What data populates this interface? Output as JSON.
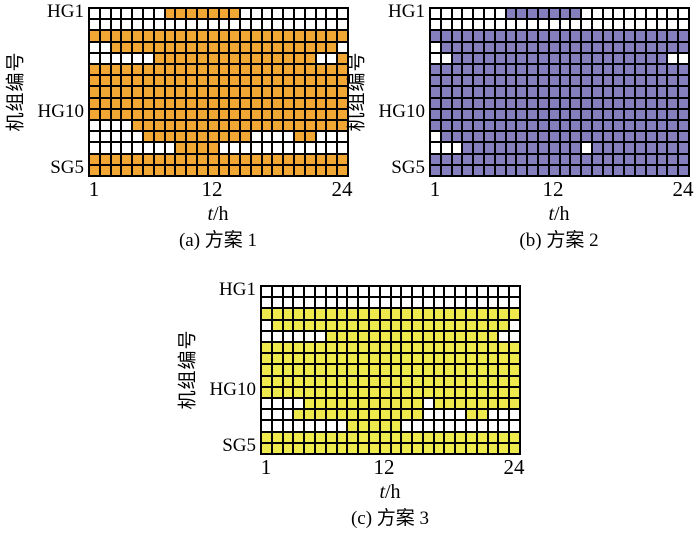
{
  "figure_background": "#FFFFFF",
  "grid_rows": 15,
  "grid_cols": 24,
  "chart_data": [
    {
      "id": "a",
      "type": "heatmap",
      "caption": "(a) 方案 1",
      "on_color": "#F1A733",
      "off_color": "#FFFFFF",
      "grid_line_color": "#000000",
      "x": {
        "var": "t",
        "unit": "/h",
        "ticks": [
          "1",
          "12",
          "24"
        ],
        "range": [
          1,
          24
        ]
      },
      "y": {
        "title": "机组编号",
        "ticks": [
          "HG1",
          "HG10",
          "SG5"
        ],
        "tick_rows": [
          1,
          10,
          15
        ]
      },
      "rows": 15,
      "cols": 24,
      "matrix": [
        "000000011111110000000000",
        "000000000000000000000000",
        "111111111111111111111111",
        "001111111111111111111110",
        "000000111111111111111001",
        "111111111111111111111111",
        "111111111111111111111111",
        "111111111111111111111111",
        "111111111111111111111111",
        "111111111111111111111111",
        "000011111111111111111111",
        "000001111111111000011000",
        "000000001111000000000000",
        "111111111111111111111111",
        "111111111111111111111111"
      ]
    },
    {
      "id": "b",
      "type": "heatmap",
      "caption": "(b) 方案 2",
      "on_color": "#857FBE",
      "off_color": "#FFFFFF",
      "grid_line_color": "#000000",
      "x": {
        "var": "t",
        "unit": "/h",
        "ticks": [
          "1",
          "12",
          "24"
        ],
        "range": [
          1,
          24
        ]
      },
      "y": {
        "title": "机组编号",
        "ticks": [
          "HG1",
          "HG10",
          "SG5"
        ],
        "tick_rows": [
          1,
          10,
          15
        ]
      },
      "rows": 15,
      "cols": 24,
      "matrix": [
        "000000011111110000000000",
        "000000000000000000000000",
        "111111111111111111111111",
        "011111111111111111111111",
        "001111111111111111111100",
        "111111111111111111111111",
        "111111111111111111111111",
        "111111111111111111111111",
        "111111111111111111111111",
        "111111111111111111111111",
        "111111111111111111111111",
        "011111111111111111111111",
        "000111111111110111111111",
        "111111111111111111111111",
        "111111111111111111111111"
      ]
    },
    {
      "id": "c",
      "type": "heatmap",
      "caption": "(c) 方案 3",
      "on_color": "#EEEA4D",
      "off_color": "#FFFFFF",
      "grid_line_color": "#000000",
      "x": {
        "var": "t",
        "unit": "/h",
        "ticks": [
          "1",
          "12",
          "24"
        ],
        "range": [
          1,
          24
        ]
      },
      "y": {
        "title": "机组编号",
        "ticks": [
          "HG1",
          "HG10",
          "SG5"
        ],
        "tick_rows": [
          1,
          10,
          15
        ]
      },
      "rows": 15,
      "cols": 24,
      "matrix": [
        "000000000000000000000000",
        "000000000000000000000000",
        "111111111111111111111111",
        "011111111111111111111110",
        "000000111111111111111100",
        "111111111111111111111111",
        "111111111111111111111111",
        "111111111111111111111111",
        "111111111111111111111111",
        "111111111111111111111111",
        "000011111111111011111111",
        "000111111111111000011000",
        "000000001111100000000000",
        "111111111111111111111111",
        "111111111111111111111111"
      ]
    }
  ]
}
